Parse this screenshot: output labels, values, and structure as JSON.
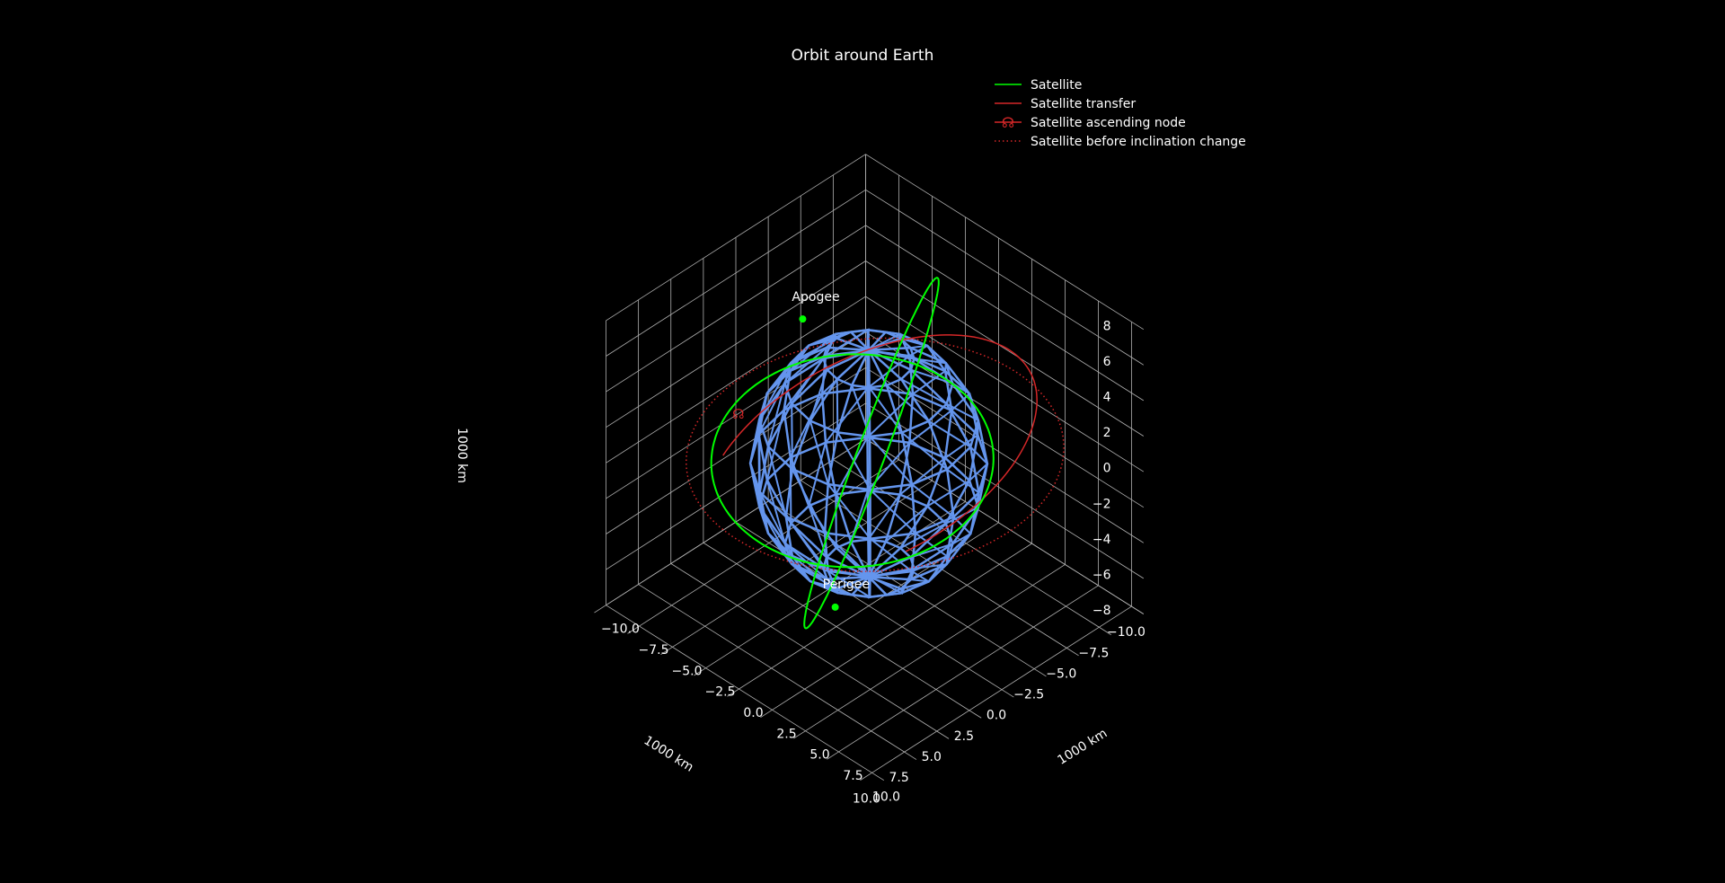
{
  "chart_data": {
    "type": "line3d",
    "title": "Orbit around Earth",
    "axes": {
      "x": {
        "label": "1000 km",
        "ticks": [
          "10.0",
          "7.5",
          "5.0",
          "2.5",
          "0.0",
          "−2.5",
          "−5.0",
          "−7.5",
          "−10.0"
        ],
        "lim": [
          -10,
          10
        ]
      },
      "y": {
        "label": "1000 km",
        "ticks": [
          "10.0",
          "7.5",
          "5.0",
          "2.5",
          "0.0",
          "−2.5",
          "−5.0",
          "−7.5",
          "−10.0"
        ],
        "lim": [
          -10,
          10
        ]
      },
      "z": {
        "label": "1000 km",
        "ticks": [
          "8",
          "6",
          "4",
          "2",
          "0",
          "−2",
          "−4",
          "−6",
          "−8"
        ],
        "lim": [
          -8,
          8
        ]
      }
    },
    "grid": true,
    "legend_position": "top-right",
    "legend": [
      {
        "label": "Satellite",
        "style": "solid",
        "color": "#00ff00"
      },
      {
        "label": "Satellite transfer",
        "style": "solid",
        "color": "#d62728"
      },
      {
        "label": "Satellite ascending node",
        "style": "marker",
        "marker": "☊",
        "color": "#d62728"
      },
      {
        "label": "Satellite before inclination change",
        "style": "dotted",
        "color": "#d62728"
      }
    ],
    "annotations": [
      {
        "label": "Apogee",
        "point": "apogee",
        "color": "#00ff00"
      },
      {
        "label": "Perigee",
        "point": "perigee",
        "color": "#00ff00"
      }
    ],
    "earth": {
      "shape": "wireframe-sphere",
      "radius": 6.378,
      "color": "#6495ed"
    },
    "colors": {
      "background": "#000000",
      "grid": "#b0b0b0",
      "earth": "#6495ed",
      "satellite": "#00ff00",
      "transfer": "#d62728"
    }
  }
}
